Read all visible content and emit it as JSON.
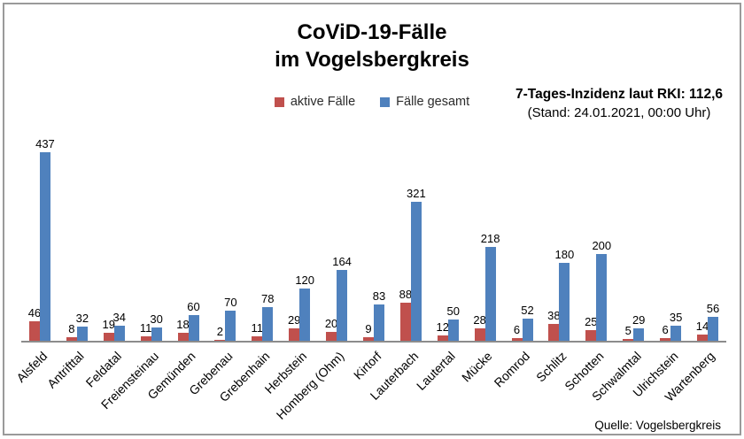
{
  "title": {
    "line1": "CoViD-19-Fälle",
    "line2": "im Vogelsbergkreis"
  },
  "incidence": {
    "line1": "7-Tages-Inzidenz laut RKI: 112,6",
    "line2": "(Stand: 24.01.2021, 00:00 Uhr)"
  },
  "source": "Quelle: Vogelsbergkreis",
  "colors": {
    "active": "#C0504D",
    "total": "#4F81BD",
    "axis": "#8c8c8c",
    "frame_border": "#9a9a9a"
  },
  "chart_data": {
    "type": "bar",
    "categories": [
      "Alsfeld",
      "Antrifttal",
      "Feldatal",
      "Freiensteinau",
      "Gemünden",
      "Grebenau",
      "Grebenhain",
      "Herbstein",
      "Homberg (Ohm)",
      "Kirtorf",
      "Lauterbach",
      "Lautertal",
      "Mücke",
      "Romrod",
      "Schlitz",
      "Schotten",
      "Schwalmtal",
      "Ulrichstein",
      "Wartenberg"
    ],
    "series": [
      {
        "name": "aktive Fälle",
        "color": "#C0504D",
        "values": [
          46,
          8,
          19,
          11,
          18,
          2,
          11,
          29,
          20,
          9,
          88,
          12,
          28,
          6,
          38,
          25,
          5,
          6,
          14
        ]
      },
      {
        "name": "Fälle gesamt",
        "color": "#4F81BD",
        "values": [
          437,
          32,
          34,
          30,
          60,
          70,
          78,
          120,
          164,
          83,
          321,
          50,
          218,
          52,
          180,
          200,
          29,
          35,
          56
        ]
      }
    ],
    "title": "CoViD-19-Fälle im Vogelsbergkreis",
    "xlabel": "",
    "ylabel": "",
    "ylim": [
      0,
      440
    ],
    "grid": false,
    "legend_position": "top-center",
    "data_labels": true
  }
}
